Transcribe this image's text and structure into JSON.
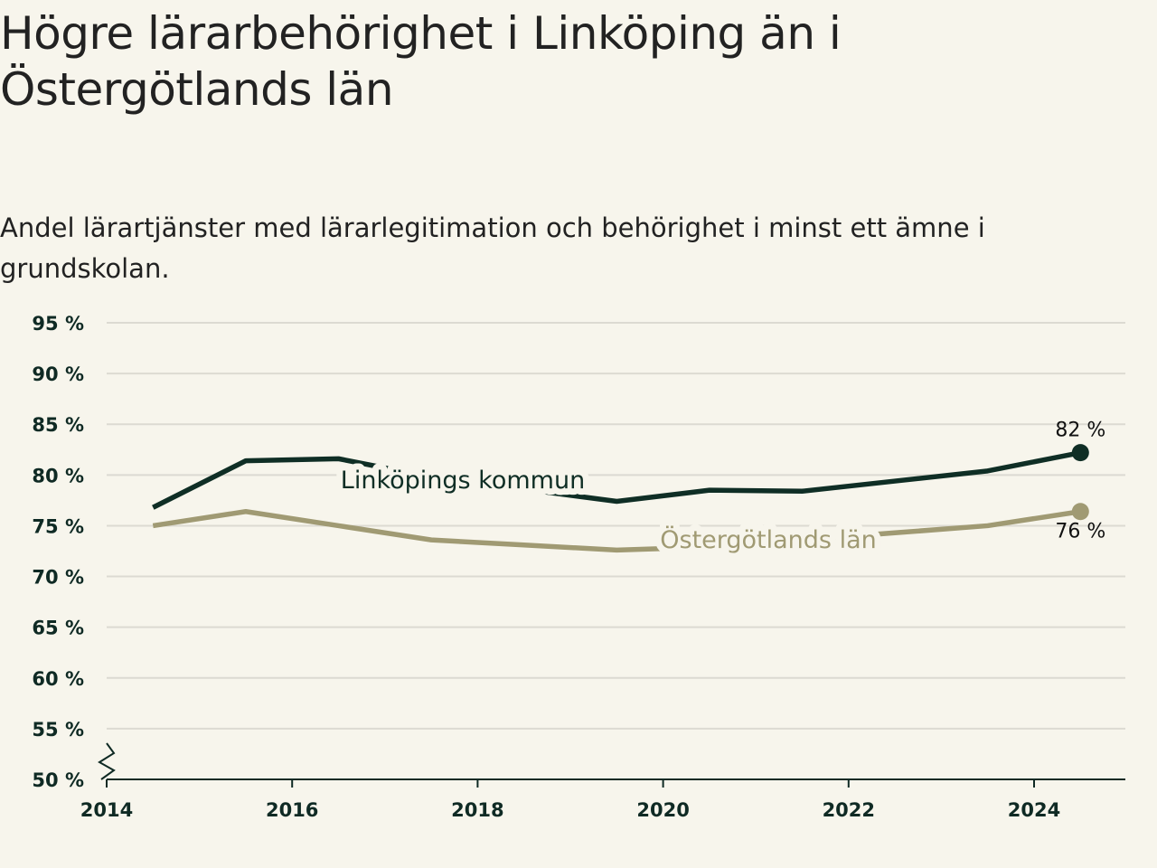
{
  "header": {
    "title": "Högre lärarbehörighet i Linköping än i Östergötlands län",
    "subtitle": "Andel lärartjänster med lärarlegitimation och behörighet i minst ett ämne i grundskolan."
  },
  "colors": {
    "linkoping": "#0f2e25",
    "ostergotland": "#a09a73",
    "grid": "#dcdad2",
    "axis": "#0f2a24",
    "background": "#f7f5ec"
  },
  "chart_data": {
    "type": "line",
    "title": "Högre lärarbehörighet i Linköping än i Östergötlands län",
    "subtitle": "Andel lärartjänster med lärarlegitimation och behörighet i minst ett ämne i grundskolan.",
    "xlabel": "",
    "ylabel": "",
    "xlim": [
      2014,
      2025
    ],
    "ylim": [
      50,
      95
    ],
    "x_ticks": [
      "2014",
      "2016",
      "2018",
      "2020",
      "2022",
      "2024"
    ],
    "y_ticks": [
      "50 %",
      "55 %",
      "60 %",
      "65 %",
      "70 %",
      "75 %",
      "80 %",
      "85 %",
      "90 %",
      "95 %"
    ],
    "y_axis_break": true,
    "grid": true,
    "x": [
      2014.5,
      2015.5,
      2016.5,
      2017.5,
      2018.5,
      2019.5,
      2020.5,
      2021.5,
      2022.5,
      2023.5,
      2024.5
    ],
    "series": [
      {
        "name": "Linköpings kommun",
        "values": [
          76.8,
          81.4,
          81.6,
          79.8,
          78.6,
          77.4,
          78.5,
          78.4,
          79.4,
          80.4,
          82.2
        ],
        "end_label": "82 %"
      },
      {
        "name": "Östergötlands län",
        "values": [
          75.0,
          76.4,
          75.0,
          73.6,
          73.1,
          72.6,
          72.9,
          73.6,
          74.3,
          75.0,
          76.4
        ],
        "end_label": "76 %"
      }
    ]
  }
}
